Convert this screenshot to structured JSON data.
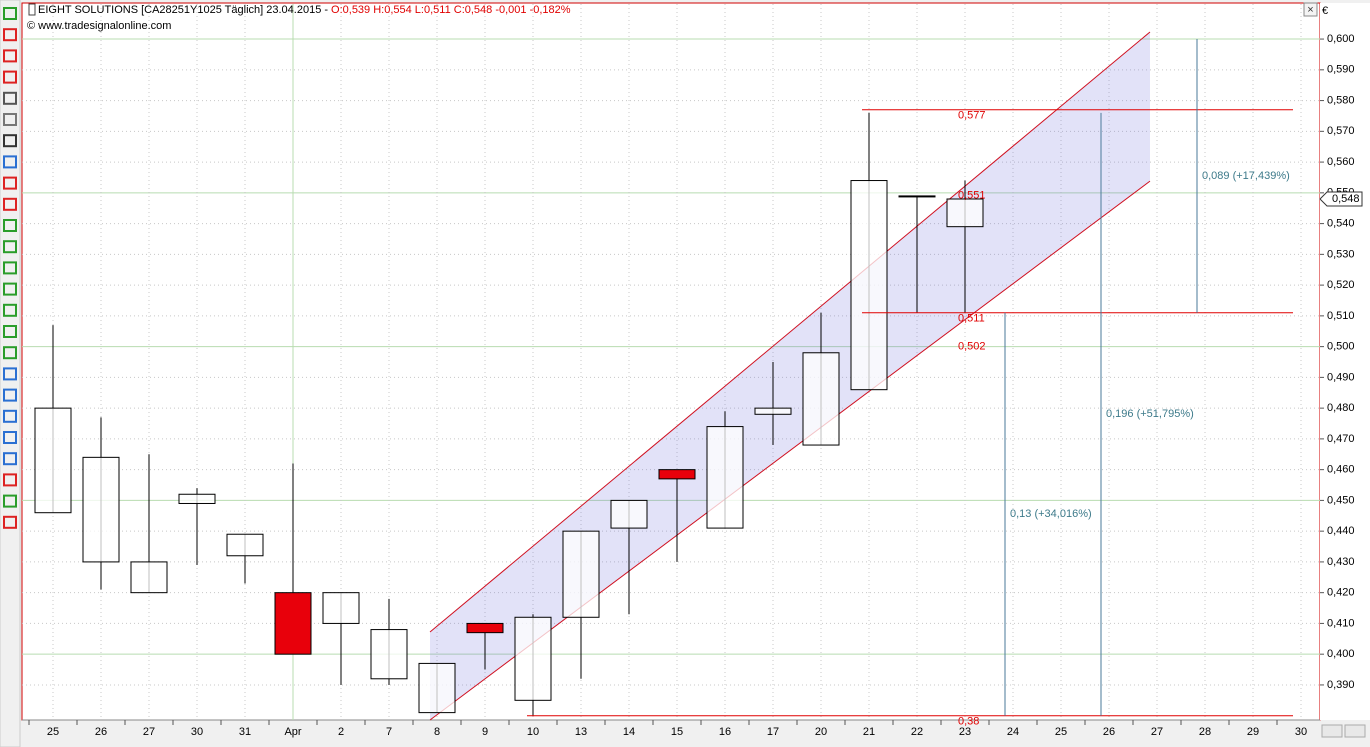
{
  "chart_data": {
    "type": "candlestick",
    "title": "EIGHT SOLUTIONS [CA28251Y1025  Täglich] 23.04.2015 -",
    "subtitle": "O:0,539 H:0,554 L:0,511 C:0,548 -0,001 -0,182%",
    "source": "© www.tradesignalonline.com",
    "currency": "€",
    "categories": [
      "25",
      "26",
      "27",
      "30",
      "31",
      "Apr",
      "2",
      "7",
      "8",
      "9",
      "10",
      "13",
      "14",
      "15",
      "16",
      "17",
      "20",
      "21",
      "22",
      "23",
      "24",
      "25",
      "26",
      "27",
      "28",
      "29",
      "30"
    ],
    "open": [
      0.446,
      0.43,
      0.42,
      0.449,
      0.432,
      0.42,
      0.41,
      0.392,
      0.381,
      0.41,
      0.385,
      0.412,
      0.441,
      0.46,
      0.441,
      0.478,
      0.468,
      0.486,
      0.549,
      0.539,
      null,
      null,
      null,
      null,
      null,
      null,
      null
    ],
    "high": [
      0.507,
      0.477,
      0.465,
      0.454,
      0.439,
      0.462,
      0.42,
      0.418,
      0.397,
      0.41,
      0.413,
      0.44,
      0.45,
      0.46,
      0.479,
      0.495,
      0.511,
      0.576,
      0.549,
      0.554,
      null,
      null,
      null,
      null,
      null,
      null,
      null
    ],
    "low": [
      0.446,
      0.421,
      0.42,
      0.429,
      0.423,
      0.4,
      0.39,
      0.39,
      0.381,
      0.395,
      0.38,
      0.392,
      0.413,
      0.43,
      0.441,
      0.468,
      0.468,
      0.486,
      0.511,
      0.511,
      null,
      null,
      null,
      null,
      null,
      null,
      null
    ],
    "close": [
      0.48,
      0.464,
      0.43,
      0.452,
      0.439,
      0.4,
      0.42,
      0.408,
      0.397,
      0.407,
      0.412,
      0.44,
      0.45,
      0.457,
      0.474,
      0.48,
      0.498,
      0.554,
      0.549,
      0.548,
      null,
      null,
      null,
      null,
      null,
      null,
      null
    ],
    "up_color": "#ffffff",
    "down_color": "#e8000b",
    "ylim": [
      0.3786,
      0.6114
    ],
    "yticks": [
      {
        "value": 0.39,
        "label": "0,390"
      },
      {
        "value": 0.4,
        "label": "0,400"
      },
      {
        "value": 0.41,
        "label": "0,410"
      },
      {
        "value": 0.42,
        "label": "0,420"
      },
      {
        "value": 0.43,
        "label": "0,430"
      },
      {
        "value": 0.44,
        "label": "0,440"
      },
      {
        "value": 0.45,
        "label": "0,450"
      },
      {
        "value": 0.46,
        "label": "0,460"
      },
      {
        "value": 0.47,
        "label": "0,470"
      },
      {
        "value": 0.48,
        "label": "0,480"
      },
      {
        "value": 0.49,
        "label": "0,490"
      },
      {
        "value": 0.5,
        "label": "0,500"
      },
      {
        "value": 0.51,
        "label": "0,510"
      },
      {
        "value": 0.52,
        "label": "0,520"
      },
      {
        "value": 0.53,
        "label": "0,530"
      },
      {
        "value": 0.54,
        "label": "0,540"
      },
      {
        "value": 0.55,
        "label": "0,550"
      },
      {
        "value": 0.56,
        "label": "0,560"
      },
      {
        "value": 0.57,
        "label": "0,570"
      },
      {
        "value": 0.58,
        "label": "0,580"
      },
      {
        "value": 0.59,
        "label": "0,590"
      },
      {
        "value": 0.6,
        "label": "0,600"
      }
    ],
    "grid": true,
    "last_price": {
      "value": 0.548,
      "label": "0,548"
    },
    "channel": {
      "upper": [
        0.4072,
        0.6023
      ],
      "lower": [
        0.3786,
        0.5538
      ],
      "color": "#d01020"
    },
    "levels": [
      {
        "value": 0.577,
        "label": "0,577"
      },
      {
        "value": 0.511,
        "label": "0,511"
      },
      {
        "value": 0.38,
        "label": "0,38"
      }
    ],
    "level_labels": [
      {
        "value": 0.551,
        "label": "0,551"
      },
      {
        "value": 0.502,
        "label": "0,502"
      }
    ],
    "measures": [
      {
        "from": 0.38,
        "to": 0.511,
        "label": "0,13 (+34,016%)"
      },
      {
        "from": 0.38,
        "to": 0.576,
        "label": "0,196 (+51,795%)"
      },
      {
        "from": 0.511,
        "to": 0.6,
        "label": "0,089 (+17,439%)"
      }
    ]
  }
}
